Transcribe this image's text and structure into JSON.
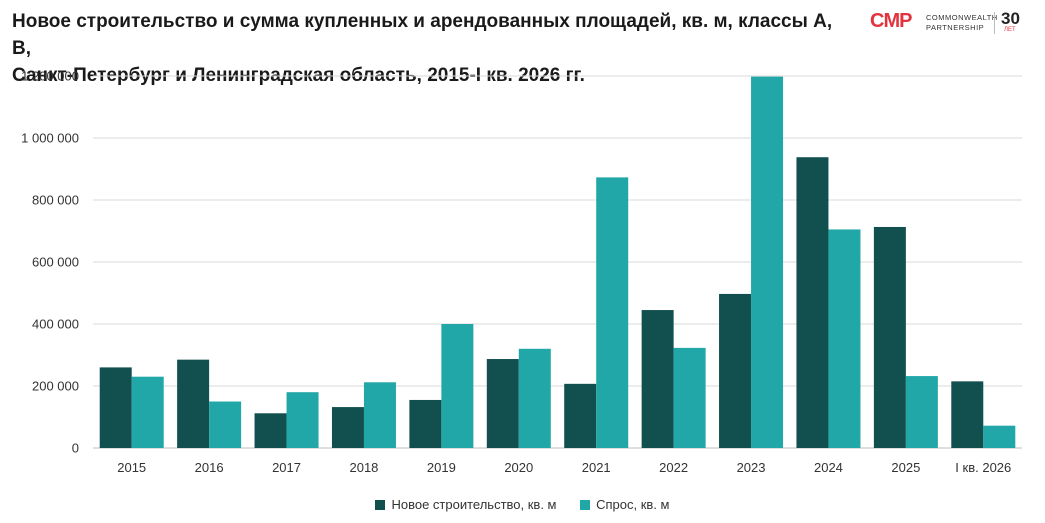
{
  "header": {
    "title_line1": "Новое строительство и сумма купленных и арендованных площадей, кв. м, классы А, В,",
    "title_line2": "Санкт-Петербург и Ленинградская область, 2015-I кв. 2026 гг."
  },
  "logo": {
    "mark": "CMP",
    "name_line1": "COMMONWEALTH",
    "name_line2": "PARTNERSHIP",
    "anniversary": "30",
    "anniversary_unit": "ЛЕТ"
  },
  "chart_data": {
    "type": "bar",
    "title": "Новое строительство и сумма купленных и арендованных площадей, кв. м, классы А, В, Санкт-Петербург и Ленинградская область, 2015-I кв. 2026 гг.",
    "categories": [
      "2015",
      "2016",
      "2017",
      "2018",
      "2019",
      "2020",
      "2021",
      "2022",
      "2023",
      "2024",
      "2025",
      "I кв. 2026"
    ],
    "series": [
      {
        "name": "Новое строительство, кв. м",
        "color": "#12504f",
        "values": [
          260000,
          285000,
          112000,
          132000,
          155000,
          287000,
          207000,
          445000,
          497000,
          938000,
          713000,
          215000
        ]
      },
      {
        "name": "Спрос, кв. м",
        "color": "#22a7a8",
        "values": [
          230000,
          150000,
          180000,
          212000,
          400000,
          320000,
          873000,
          323000,
          1198000,
          705000,
          232000,
          72000
        ]
      }
    ],
    "yticks": [
      0,
      200000,
      400000,
      600000,
      800000,
      1000000,
      1200000
    ],
    "ytick_labels": [
      "0",
      "200 000",
      "400 000",
      "600 000",
      "800 000",
      "1 000 000",
      "1 200 000"
    ],
    "ylim": [
      0,
      1200000
    ],
    "grid": true,
    "legend_position": "bottom",
    "xlabel": "",
    "ylabel": ""
  }
}
